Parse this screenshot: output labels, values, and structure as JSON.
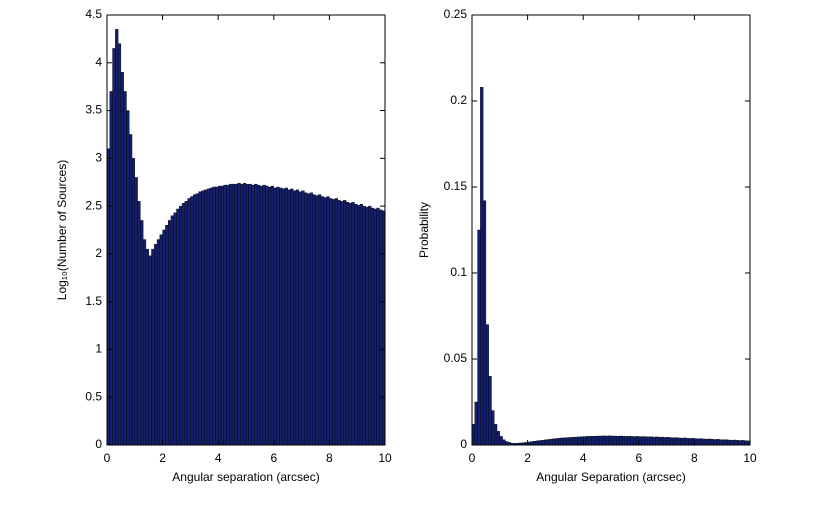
{
  "chart_data": [
    {
      "type": "histogram",
      "color": "#14206e",
      "ylabel": "Log₁₀(Number of Sources)",
      "xlabel": "Angular separation (arcsec)",
      "xlim": [
        0,
        10
      ],
      "xticks": [
        0,
        2,
        4,
        6,
        8,
        10
      ],
      "ylim": [
        0,
        4.5
      ],
      "yticks": [
        0,
        0.5,
        1,
        1.5,
        2,
        2.5,
        3,
        3.5,
        4,
        4.5
      ],
      "grid": false,
      "bins": [
        0,
        0.1,
        0.2,
        0.3,
        0.4,
        0.5,
        0.6,
        0.7,
        0.8,
        0.9,
        1,
        1.1,
        1.2,
        1.3,
        1.4,
        1.5,
        1.6,
        1.7,
        1.8,
        1.9,
        2,
        2.1,
        2.2,
        2.3,
        2.4,
        2.5,
        2.6,
        2.7,
        2.8,
        2.9,
        3,
        3.1,
        3.2,
        3.3,
        3.4,
        3.5,
        3.6,
        3.7,
        3.8,
        3.9,
        4,
        4.1,
        4.2,
        4.3,
        4.4,
        4.5,
        4.6,
        4.7,
        4.8,
        4.9,
        5,
        5.1,
        5.2,
        5.3,
        5.4,
        5.5,
        5.6,
        5.7,
        5.8,
        5.9,
        6,
        6.1,
        6.2,
        6.3,
        6.4,
        6.5,
        6.6,
        6.7,
        6.8,
        6.9,
        7,
        7.1,
        7.2,
        7.3,
        7.4,
        7.5,
        7.6,
        7.7,
        7.8,
        7.9,
        8,
        8.1,
        8.2,
        8.3,
        8.4,
        8.5,
        8.6,
        8.7,
        8.8,
        8.9,
        9,
        9.1,
        9.2,
        9.3,
        9.4,
        9.5,
        9.6,
        9.7,
        9.8,
        9.9,
        10
      ],
      "values": [
        3.1,
        3.7,
        4.15,
        4.35,
        4.2,
        3.9,
        3.7,
        3.5,
        3.25,
        3.0,
        2.8,
        2.55,
        2.35,
        2.15,
        2.05,
        1.98,
        2.05,
        2.1,
        2.15,
        2.2,
        2.25,
        2.3,
        2.35,
        2.4,
        2.43,
        2.47,
        2.5,
        2.53,
        2.55,
        2.58,
        2.6,
        2.62,
        2.63,
        2.65,
        2.66,
        2.67,
        2.68,
        2.69,
        2.7,
        2.7,
        2.71,
        2.71,
        2.72,
        2.72,
        2.73,
        2.73,
        2.73,
        2.74,
        2.73,
        2.74,
        2.73,
        2.73,
        2.72,
        2.73,
        2.72,
        2.71,
        2.72,
        2.71,
        2.7,
        2.71,
        2.69,
        2.7,
        2.69,
        2.68,
        2.69,
        2.67,
        2.68,
        2.66,
        2.67,
        2.65,
        2.66,
        2.64,
        2.63,
        2.64,
        2.62,
        2.61,
        2.62,
        2.6,
        2.59,
        2.6,
        2.58,
        2.57,
        2.58,
        2.56,
        2.55,
        2.56,
        2.54,
        2.53,
        2.54,
        2.52,
        2.51,
        2.52,
        2.5,
        2.49,
        2.5,
        2.48,
        2.47,
        2.48,
        2.46,
        2.45
      ]
    },
    {
      "type": "histogram",
      "color": "#14206e",
      "ylabel": "Probability",
      "xlabel": "Angular Separation (arcsec)",
      "xlim": [
        0,
        10
      ],
      "xticks": [
        0,
        2,
        4,
        6,
        8,
        10
      ],
      "ylim": [
        0,
        0.25
      ],
      "yticks": [
        0,
        0.05,
        0.1,
        0.15,
        0.2,
        0.25
      ],
      "grid": false,
      "bins": [
        0,
        0.1,
        0.2,
        0.3,
        0.4,
        0.5,
        0.6,
        0.7,
        0.8,
        0.9,
        1,
        1.1,
        1.2,
        1.3,
        1.4,
        1.5,
        1.6,
        1.7,
        1.8,
        1.9,
        2,
        2.1,
        2.2,
        2.3,
        2.4,
        2.5,
        2.6,
        2.7,
        2.8,
        2.9,
        3,
        3.1,
        3.2,
        3.3,
        3.4,
        3.5,
        3.6,
        3.7,
        3.8,
        3.9,
        4,
        4.1,
        4.2,
        4.3,
        4.4,
        4.5,
        4.6,
        4.7,
        4.8,
        4.9,
        5,
        5.1,
        5.2,
        5.3,
        5.4,
        5.5,
        5.6,
        5.7,
        5.8,
        5.9,
        6,
        6.1,
        6.2,
        6.3,
        6.4,
        6.5,
        6.6,
        6.7,
        6.8,
        6.9,
        7,
        7.1,
        7.2,
        7.3,
        7.4,
        7.5,
        7.6,
        7.7,
        7.8,
        7.9,
        8,
        8.1,
        8.2,
        8.3,
        8.4,
        8.5,
        8.6,
        8.7,
        8.8,
        8.9,
        9,
        9.1,
        9.2,
        9.3,
        9.4,
        9.5,
        9.6,
        9.7,
        9.8,
        9.9,
        10
      ],
      "values": [
        0.012,
        0.025,
        0.125,
        0.208,
        0.142,
        0.07,
        0.04,
        0.02,
        0.012,
        0.008,
        0.005,
        0.003,
        0.002,
        0.0015,
        0.001,
        0.001,
        0.001,
        0.0012,
        0.0013,
        0.0015,
        0.0017,
        0.002,
        0.0022,
        0.0024,
        0.0026,
        0.0028,
        0.003,
        0.0032,
        0.0034,
        0.0036,
        0.0038,
        0.004,
        0.0041,
        0.0042,
        0.0043,
        0.0044,
        0.0045,
        0.0046,
        0.0047,
        0.0048,
        0.0049,
        0.005,
        0.005,
        0.0051,
        0.0051,
        0.0052,
        0.0052,
        0.0053,
        0.0052,
        0.0053,
        0.0052,
        0.0052,
        0.0051,
        0.0052,
        0.0051,
        0.005,
        0.0051,
        0.005,
        0.0049,
        0.005,
        0.0048,
        0.0049,
        0.0048,
        0.0047,
        0.0048,
        0.0046,
        0.0047,
        0.0045,
        0.0046,
        0.0044,
        0.0045,
        0.0043,
        0.0042,
        0.0043,
        0.0041,
        0.004,
        0.0041,
        0.0039,
        0.0038,
        0.0039,
        0.0037,
        0.0036,
        0.0037,
        0.0035,
        0.0034,
        0.0035,
        0.0033,
        0.0032,
        0.0033,
        0.0031,
        0.003,
        0.0031,
        0.0029,
        0.0028,
        0.0029,
        0.0027,
        0.0026,
        0.0027,
        0.0025,
        0.0024
      ]
    }
  ]
}
